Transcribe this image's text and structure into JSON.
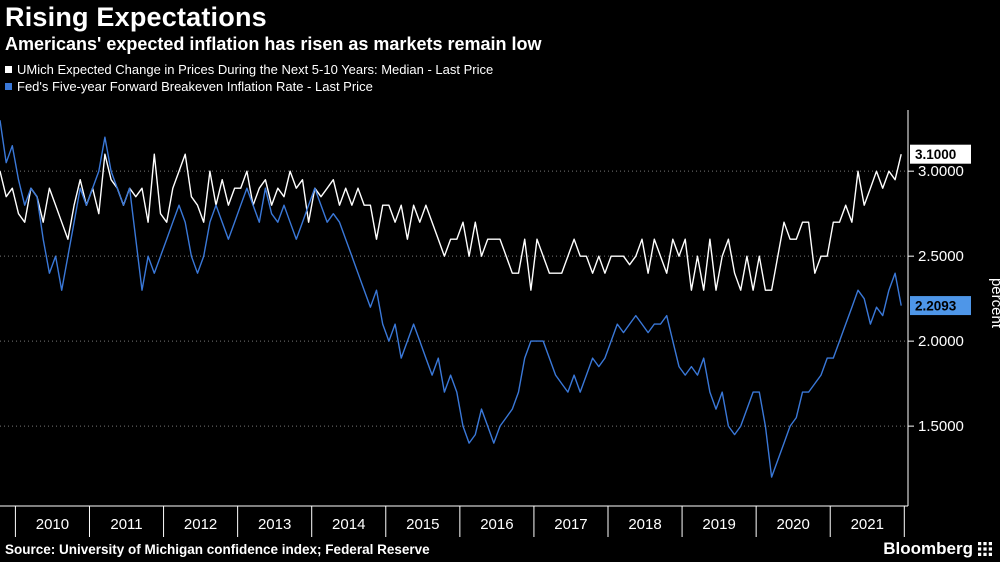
{
  "footer": {
    "source": "Source: University of Michigan confidence index; Federal Reserve",
    "brand": "Bloomberg"
  },
  "chart_data": {
    "type": "line",
    "title": "Rising Expectations",
    "subtitle": "Americans' expected inflation has risen as markets remain low",
    "xlabel": "",
    "ylabel": "percent",
    "background": "#000000",
    "grid": "dotted-horizontal",
    "legend_position": "top-left",
    "ylim": [
      1.03,
      3.36
    ],
    "yticks": [
      {
        "value": 3.0,
        "label": "3.0000"
      },
      {
        "value": 2.5,
        "label": "2.5000"
      },
      {
        "value": 2.0,
        "label": "2.0000"
      },
      {
        "value": 1.5,
        "label": "1.5000"
      }
    ],
    "x_tick_years": [
      2010,
      2011,
      2012,
      2013,
      2014,
      2015,
      2016,
      2017,
      2018,
      2019,
      2020,
      2021
    ],
    "x_start": 2009.792,
    "x_step": 0.0833333,
    "series": [
      {
        "name": "UMich Expected Change in Prices During the Next 5-10 Years: Median - Last Price",
        "color": "#ffffff",
        "label_bg": "#ffffff",
        "last_value": 3.1,
        "last_price_label": "3.1000",
        "values": [
          3.0,
          2.85,
          2.9,
          2.75,
          2.7,
          2.9,
          2.85,
          2.7,
          2.9,
          2.8,
          2.7,
          2.6,
          2.8,
          2.95,
          2.8,
          2.9,
          2.75,
          3.1,
          2.95,
          2.9,
          2.8,
          2.9,
          2.85,
          2.9,
          2.7,
          3.1,
          2.75,
          2.7,
          2.9,
          3.0,
          3.1,
          2.85,
          2.8,
          2.7,
          3.0,
          2.8,
          2.95,
          2.8,
          2.9,
          2.9,
          3.0,
          2.8,
          2.9,
          2.95,
          2.8,
          2.9,
          2.85,
          3.0,
          2.9,
          2.95,
          2.7,
          2.9,
          2.85,
          2.9,
          2.95,
          2.8,
          2.9,
          2.8,
          2.9,
          2.8,
          2.8,
          2.6,
          2.8,
          2.8,
          2.7,
          2.8,
          2.6,
          2.8,
          2.7,
          2.8,
          2.7,
          2.6,
          2.5,
          2.6,
          2.6,
          2.7,
          2.5,
          2.7,
          2.5,
          2.6,
          2.6,
          2.6,
          2.5,
          2.4,
          2.4,
          2.6,
          2.3,
          2.6,
          2.5,
          2.4,
          2.4,
          2.4,
          2.5,
          2.6,
          2.5,
          2.5,
          2.4,
          2.5,
          2.4,
          2.5,
          2.5,
          2.5,
          2.45,
          2.5,
          2.6,
          2.4,
          2.6,
          2.5,
          2.4,
          2.6,
          2.5,
          2.6,
          2.3,
          2.5,
          2.3,
          2.6,
          2.3,
          2.5,
          2.6,
          2.4,
          2.3,
          2.5,
          2.3,
          2.5,
          2.3,
          2.3,
          2.5,
          2.7,
          2.6,
          2.6,
          2.7,
          2.7,
          2.4,
          2.5,
          2.5,
          2.7,
          2.7,
          2.8,
          2.7,
          3.0,
          2.8,
          2.9,
          3.0,
          2.9,
          3.0,
          2.95,
          3.1
        ]
      },
      {
        "name": "Fed's Five-year Forward Breakeven Inflation Rate - Last Price",
        "color": "#3a78d8",
        "label_bg": "#4e96e8",
        "last_value": 2.2093,
        "last_price_label": "2.2093",
        "values": [
          3.3,
          3.05,
          3.15,
          2.95,
          2.8,
          2.9,
          2.85,
          2.6,
          2.4,
          2.5,
          2.3,
          2.5,
          2.7,
          2.9,
          2.8,
          2.9,
          3.0,
          3.2,
          3.0,
          2.9,
          2.8,
          2.9,
          2.6,
          2.3,
          2.5,
          2.4,
          2.5,
          2.6,
          2.7,
          2.8,
          2.7,
          2.5,
          2.4,
          2.5,
          2.7,
          2.8,
          2.7,
          2.6,
          2.7,
          2.8,
          2.9,
          2.8,
          2.7,
          2.9,
          2.75,
          2.7,
          2.8,
          2.7,
          2.6,
          2.7,
          2.8,
          2.9,
          2.8,
          2.7,
          2.75,
          2.7,
          2.6,
          2.5,
          2.4,
          2.3,
          2.2,
          2.3,
          2.1,
          2.0,
          2.1,
          1.9,
          2.0,
          2.1,
          2.0,
          1.9,
          1.8,
          1.9,
          1.7,
          1.8,
          1.7,
          1.5,
          1.4,
          1.45,
          1.6,
          1.5,
          1.4,
          1.5,
          1.55,
          1.6,
          1.7,
          1.9,
          2.0,
          2.0,
          2.0,
          1.9,
          1.8,
          1.75,
          1.7,
          1.8,
          1.7,
          1.8,
          1.9,
          1.85,
          1.9,
          2.0,
          2.1,
          2.05,
          2.1,
          2.15,
          2.1,
          2.05,
          2.1,
          2.1,
          2.15,
          2.0,
          1.85,
          1.8,
          1.85,
          1.8,
          1.9,
          1.7,
          1.6,
          1.7,
          1.5,
          1.45,
          1.5,
          1.6,
          1.7,
          1.7,
          1.5,
          1.2,
          1.3,
          1.4,
          1.5,
          1.55,
          1.7,
          1.7,
          1.75,
          1.8,
          1.9,
          1.9,
          2.0,
          2.1,
          2.2,
          2.3,
          2.25,
          2.1,
          2.2,
          2.15,
          2.3,
          2.4,
          2.2093
        ]
      }
    ]
  }
}
